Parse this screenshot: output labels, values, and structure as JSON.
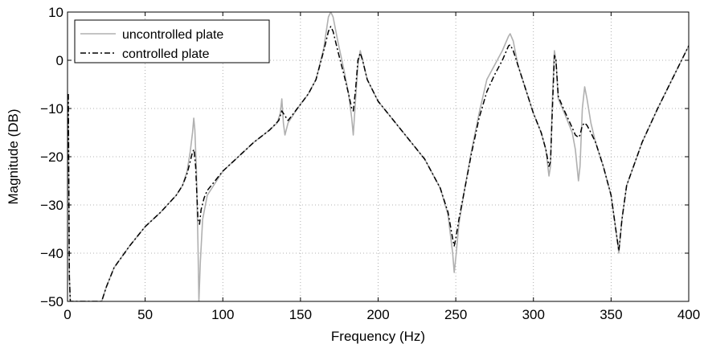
{
  "chart_data": {
    "type": "line",
    "xlabel": "Frequency (Hz)",
    "ylabel": "Magnitude (DB)",
    "xlim": [
      0,
      400
    ],
    "ylim": [
      -50,
      10
    ],
    "xticks": [
      0,
      50,
      100,
      150,
      200,
      250,
      300,
      350,
      400
    ],
    "yticks": [
      10,
      0,
      -10,
      -20,
      -30,
      -40,
      -50
    ],
    "xtick_labels": [
      "0",
      "50",
      "100",
      "150",
      "200",
      "250",
      "300",
      "350",
      "400"
    ],
    "ytick_labels": [
      "10",
      "0",
      "−10",
      "−20",
      "−30",
      "−40",
      "−50"
    ],
    "grid": true,
    "legend_position": "top-left",
    "series": [
      {
        "name": "uncontrolled plate",
        "color": "#b0b0b0",
        "style": "solid",
        "points": [
          [
            0.5,
            -7
          ],
          [
            1.2,
            -45
          ],
          [
            1.8,
            -50
          ],
          [
            22,
            -50
          ],
          [
            25,
            -47
          ],
          [
            30,
            -43
          ],
          [
            40,
            -38.5
          ],
          [
            50,
            -34.5
          ],
          [
            60,
            -31.5
          ],
          [
            70,
            -28
          ],
          [
            74,
            -26
          ],
          [
            77,
            -23
          ],
          [
            79,
            -19
          ],
          [
            80.5,
            -15
          ],
          [
            81.3,
            -12
          ],
          [
            82,
            -14.5
          ],
          [
            83,
            -23
          ],
          [
            84,
            -38
          ],
          [
            84.6,
            -50
          ],
          [
            85.5,
            -42
          ],
          [
            87,
            -33
          ],
          [
            90,
            -28
          ],
          [
            95,
            -25.5
          ],
          [
            100,
            -23
          ],
          [
            110,
            -20
          ],
          [
            120,
            -17
          ],
          [
            130,
            -14.5
          ],
          [
            135,
            -13
          ],
          [
            137,
            -11
          ],
          [
            138,
            -8
          ],
          [
            139,
            -13
          ],
          [
            140,
            -15.5
          ],
          [
            142,
            -13
          ],
          [
            148,
            -10
          ],
          [
            155,
            -7
          ],
          [
            160,
            -4
          ],
          [
            165,
            2.5
          ],
          [
            168,
            9
          ],
          [
            169.5,
            10
          ],
          [
            171,
            9
          ],
          [
            174,
            4
          ],
          [
            178,
            -2
          ],
          [
            181,
            -7
          ],
          [
            183,
            -12
          ],
          [
            184,
            -15.5
          ],
          [
            185.5,
            -8
          ],
          [
            187,
            -1
          ],
          [
            188.5,
            2
          ],
          [
            190,
            0
          ],
          [
            193,
            -4
          ],
          [
            200,
            -8.5
          ],
          [
            210,
            -12.5
          ],
          [
            220,
            -16.5
          ],
          [
            230,
            -20.5
          ],
          [
            240,
            -26.5
          ],
          [
            245,
            -32
          ],
          [
            248,
            -40
          ],
          [
            249,
            -44
          ],
          [
            250,
            -41
          ],
          [
            252,
            -34
          ],
          [
            255,
            -28
          ],
          [
            260,
            -19
          ],
          [
            265,
            -11
          ],
          [
            270,
            -4
          ],
          [
            275,
            -1
          ],
          [
            280,
            2
          ],
          [
            284,
            5
          ],
          [
            285,
            5.5
          ],
          [
            287,
            4
          ],
          [
            290,
            -1
          ],
          [
            295,
            -6
          ],
          [
            300,
            -11
          ],
          [
            305,
            -15
          ],
          [
            308,
            -18.5
          ],
          [
            310,
            -24
          ],
          [
            311,
            -22
          ],
          [
            312,
            -10
          ],
          [
            313.5,
            2
          ],
          [
            314.5,
            0
          ],
          [
            316,
            -8
          ],
          [
            320,
            -11
          ],
          [
            325,
            -15
          ],
          [
            327,
            -18.5
          ],
          [
            329,
            -25
          ],
          [
            330,
            -22
          ],
          [
            331.5,
            -10
          ],
          [
            333,
            -5.5
          ],
          [
            334.5,
            -8
          ],
          [
            337,
            -13
          ],
          [
            340,
            -17
          ],
          [
            345,
            -22
          ],
          [
            350,
            -28
          ],
          [
            353,
            -35
          ],
          [
            355,
            -40
          ],
          [
            357,
            -33
          ],
          [
            360,
            -26
          ],
          [
            370,
            -17
          ],
          [
            380,
            -10
          ],
          [
            390,
            -3.5
          ],
          [
            400,
            3
          ]
        ]
      },
      {
        "name": "controlled plate",
        "color": "#000000",
        "style": "dashdot",
        "points": [
          [
            0.5,
            -7
          ],
          [
            1.2,
            -45
          ],
          [
            1.8,
            -50
          ],
          [
            22,
            -50
          ],
          [
            25,
            -47
          ],
          [
            30,
            -43
          ],
          [
            40,
            -38.5
          ],
          [
            50,
            -34.5
          ],
          [
            60,
            -31.5
          ],
          [
            70,
            -28
          ],
          [
            74,
            -26
          ],
          [
            77,
            -23.5
          ],
          [
            79,
            -21
          ],
          [
            80.5,
            -19
          ],
          [
            81.5,
            -18.5
          ],
          [
            82.5,
            -22
          ],
          [
            84,
            -33
          ],
          [
            85,
            -34
          ],
          [
            86,
            -31
          ],
          [
            88,
            -28.5
          ],
          [
            90,
            -27
          ],
          [
            95,
            -25
          ],
          [
            100,
            -23
          ],
          [
            110,
            -20
          ],
          [
            120,
            -17
          ],
          [
            130,
            -14.5
          ],
          [
            136,
            -12.5
          ],
          [
            138,
            -10.5
          ],
          [
            140,
            -11.5
          ],
          [
            142,
            -12.5
          ],
          [
            148,
            -10
          ],
          [
            155,
            -7
          ],
          [
            160,
            -4
          ],
          [
            165,
            2
          ],
          [
            168,
            6
          ],
          [
            169.5,
            7
          ],
          [
            171,
            6
          ],
          [
            174,
            2
          ],
          [
            178,
            -3
          ],
          [
            181,
            -7
          ],
          [
            183,
            -10
          ],
          [
            184,
            -10.5
          ],
          [
            185.5,
            -6
          ],
          [
            187,
            0
          ],
          [
            188.5,
            1.5
          ],
          [
            190,
            0
          ],
          [
            193,
            -4
          ],
          [
            200,
            -8.5
          ],
          [
            210,
            -12.5
          ],
          [
            220,
            -16.5
          ],
          [
            230,
            -20.5
          ],
          [
            240,
            -26.5
          ],
          [
            245,
            -31.5
          ],
          [
            248,
            -37
          ],
          [
            249,
            -38.5
          ],
          [
            250,
            -37
          ],
          [
            252,
            -33
          ],
          [
            255,
            -28
          ],
          [
            260,
            -19.5
          ],
          [
            265,
            -12
          ],
          [
            270,
            -6.5
          ],
          [
            275,
            -3
          ],
          [
            280,
            0
          ],
          [
            284,
            3
          ],
          [
            285,
            3.2
          ],
          [
            287,
            2
          ],
          [
            290,
            -1
          ],
          [
            295,
            -6
          ],
          [
            300,
            -11
          ],
          [
            305,
            -15
          ],
          [
            308,
            -18.5
          ],
          [
            310,
            -22
          ],
          [
            311,
            -21
          ],
          [
            312,
            -12
          ],
          [
            313.5,
            1
          ],
          [
            314.5,
            0
          ],
          [
            316,
            -7.5
          ],
          [
            320,
            -10.5
          ],
          [
            325,
            -14
          ],
          [
            327,
            -15.5
          ],
          [
            329,
            -16
          ],
          [
            330,
            -15.5
          ],
          [
            331.5,
            -13.5
          ],
          [
            333,
            -13
          ],
          [
            334.5,
            -13.5
          ],
          [
            337,
            -15
          ],
          [
            340,
            -17
          ],
          [
            345,
            -22
          ],
          [
            350,
            -28
          ],
          [
            353,
            -35
          ],
          [
            355,
            -39.5
          ],
          [
            357,
            -33
          ],
          [
            360,
            -26
          ],
          [
            370,
            -17
          ],
          [
            380,
            -10
          ],
          [
            390,
            -3.5
          ],
          [
            400,
            3
          ]
        ]
      }
    ]
  }
}
